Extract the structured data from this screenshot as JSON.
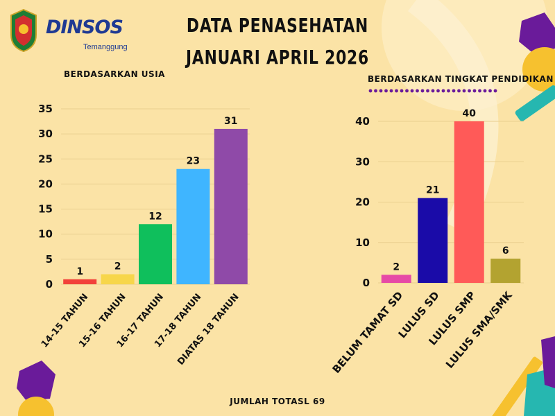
{
  "header": {
    "title_line1": "DATA PENASEHATAN",
    "title_line2": "JANUARI APRIL 2026",
    "logo_text": "DINSOS",
    "logo_city": "Temanggung"
  },
  "footer": {
    "total_text": "JUMLAH TOTASL 69"
  },
  "colors": {
    "background": "#fbe3a6",
    "purple": "#6a1b9a",
    "yellow": "#f6c12f",
    "teal": "#26b7b0"
  },
  "chart_data": [
    {
      "type": "bar",
      "title": "BERDASARKAN USIA",
      "categories": [
        "14-15 TAHUN",
        "15-16 TAHUN",
        "16-17 TAHUN",
        "17-18 TAHUN",
        "DIATAS 18 TAHUN"
      ],
      "values": [
        1,
        2,
        12,
        23,
        31
      ],
      "colors": [
        "#f2413a",
        "#f7d64a",
        "#0fbf5c",
        "#3fb5ff",
        "#8f4aa8"
      ],
      "yticks": [
        0,
        5,
        10,
        15,
        20,
        25,
        30,
        35
      ],
      "ylim": [
        0,
        35
      ],
      "grid": true,
      "xlabel": "",
      "ylabel": ""
    },
    {
      "type": "bar",
      "title": "BERDASARKAN TINGKAT PENDIDIKAN",
      "categories": [
        "BELUM TAMAT SD",
        "LULUS SD",
        "LULUS SMP",
        "LULUS SMA/SMK"
      ],
      "values": [
        2,
        21,
        40,
        6
      ],
      "colors": [
        "#e64aa6",
        "#1a0ba8",
        "#ff5a58",
        "#b3a330"
      ],
      "yticks": [
        0,
        10,
        20,
        30,
        40
      ],
      "ylim": [
        0,
        40
      ],
      "grid": true,
      "xlabel": "",
      "ylabel": ""
    }
  ]
}
